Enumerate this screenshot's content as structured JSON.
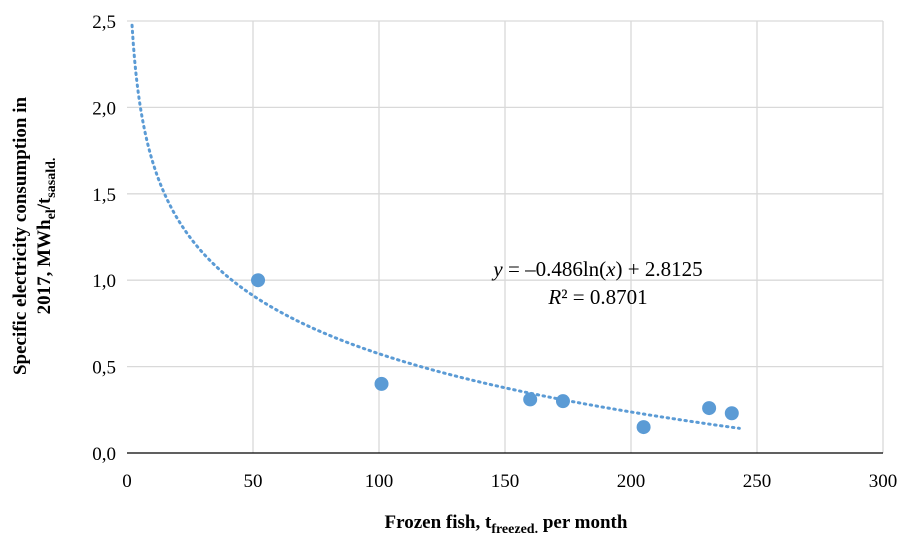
{
  "chart_data": {
    "type": "scatter",
    "xlabel": {
      "main": "Frozen fish, t",
      "sub": "freezed.",
      "tail": " per month"
    },
    "ylabel": {
      "line1": "Specific electricity consumption in",
      "line2_main": "2017, MWh",
      "line2_sub1": "el",
      "line2_mid": "/t",
      "line2_sub2": "sasald."
    },
    "xlim": [
      0,
      300
    ],
    "ylim": [
      0,
      2.5
    ],
    "x_ticks": [
      0,
      50,
      100,
      150,
      200,
      250,
      300
    ],
    "y_ticks": [
      "0,0",
      "0,5",
      "1,0",
      "1,5",
      "2,0",
      "2,5"
    ],
    "y_tick_values": [
      0,
      0.5,
      1.0,
      1.5,
      2.0,
      2.5
    ],
    "grid": true,
    "colors": {
      "points": "#5b9bd5",
      "trendline": "#5b9bd5",
      "grid": "#d9d9d9"
    },
    "series": [
      {
        "points": [
          {
            "x": 52,
            "y": 1.0
          },
          {
            "x": 101,
            "y": 0.4
          },
          {
            "x": 160,
            "y": 0.31
          },
          {
            "x": 173,
            "y": 0.3
          },
          {
            "x": 205,
            "y": 0.15
          },
          {
            "x": 231,
            "y": 0.26
          },
          {
            "x": 240,
            "y": 0.23
          }
        ]
      }
    ],
    "trendline": {
      "type": "logarithmic",
      "a": -0.486,
      "b": 2.8125,
      "x_range": [
        1,
        243
      ],
      "style": "dotted"
    },
    "annotations": {
      "equation": {
        "y_var": "y",
        "rest_before": " = –0.486ln(",
        "x_var": "x",
        "rest_after": ") + 2.8125"
      },
      "r_squared": {
        "var": "R",
        "rest": "² = 0.8701"
      }
    }
  }
}
